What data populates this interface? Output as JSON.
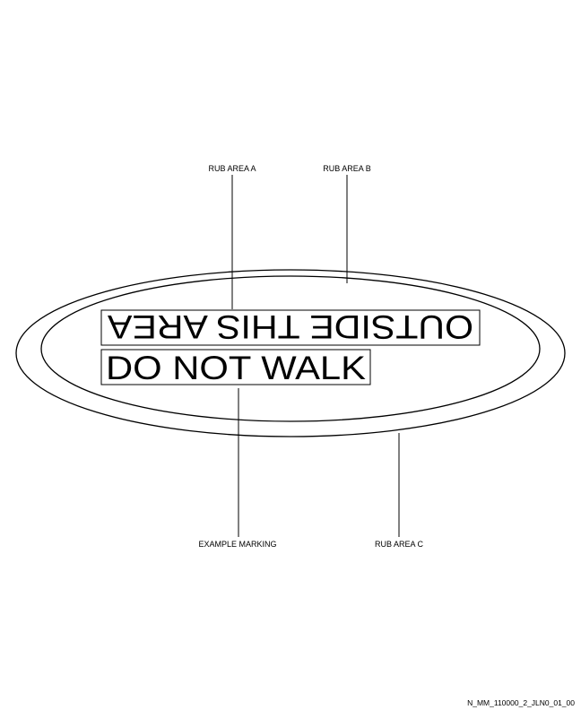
{
  "labels": {
    "rub_area_a": "RUB AREA A",
    "rub_area_b": "RUB AREA B",
    "rub_area_c": "RUB AREA C",
    "example_marking": "EXAMPLE MARKING"
  },
  "marking": {
    "top_line": "OUTSIDE THIS AREA",
    "bottom_line": "DO NOT WALK"
  },
  "figure_id": "N_MM_110000_2_JLN0_01_00",
  "colors": {
    "stroke": "#000000",
    "background": "#ffffff"
  }
}
